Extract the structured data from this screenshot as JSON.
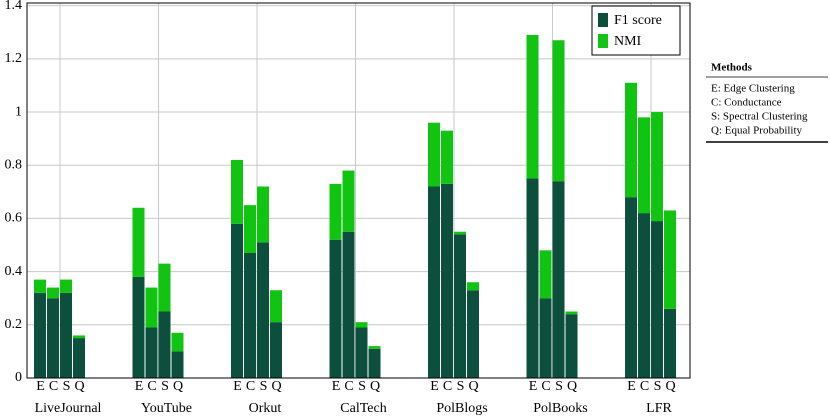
{
  "chart_data": {
    "type": "grouped-stacked-bar",
    "categories": [
      "LiveJournal",
      "YouTube",
      "Orkut",
      "CalTech",
      "PolBlogs",
      "PolBooks",
      "LFR"
    ],
    "subcategories": [
      "E",
      "C",
      "S",
      "Q"
    ],
    "series": [
      {
        "name": "F1 score",
        "color": "#0c4f3d",
        "values": [
          [
            0.32,
            0.3,
            0.32,
            0.15
          ],
          [
            0.38,
            0.19,
            0.25,
            0.1
          ],
          [
            0.58,
            0.47,
            0.51,
            0.21
          ],
          [
            0.52,
            0.55,
            0.19,
            0.11
          ],
          [
            0.72,
            0.73,
            0.54,
            0.33
          ],
          [
            0.75,
            0.3,
            0.74,
            0.24
          ],
          [
            0.68,
            0.62,
            0.59,
            0.26
          ]
        ]
      },
      {
        "name": "NMI",
        "color": "#12c412",
        "values": [
          [
            0.05,
            0.04,
            0.05,
            0.01
          ],
          [
            0.26,
            0.15,
            0.18,
            0.07
          ],
          [
            0.24,
            0.18,
            0.21,
            0.12
          ],
          [
            0.21,
            0.23,
            0.02,
            0.01
          ],
          [
            0.24,
            0.2,
            0.01,
            0.03
          ],
          [
            0.54,
            0.18,
            0.53,
            0.01
          ],
          [
            0.43,
            0.36,
            0.41,
            0.37
          ]
        ]
      }
    ],
    "ylim": [
      0,
      1.41
    ],
    "yticks": [
      0,
      {
        "value": 0.2,
        "label": "0.2"
      },
      {
        "value": 0.4,
        "label": "0.4"
      },
      {
        "value": 0.6,
        "label": "0.6"
      },
      {
        "value": 0.8,
        "label": "0.8"
      },
      1,
      {
        "value": 1.2,
        "label": "1.2"
      },
      {
        "value": 1.4,
        "label": "1.4"
      }
    ],
    "grid": true,
    "legend": "upper right",
    "methods": {
      "title": "Methods",
      "items": [
        "E: Edge Clustering",
        "C: Conductance",
        "S: Spectral Clustering",
        "Q: Equal Probability"
      ]
    }
  }
}
